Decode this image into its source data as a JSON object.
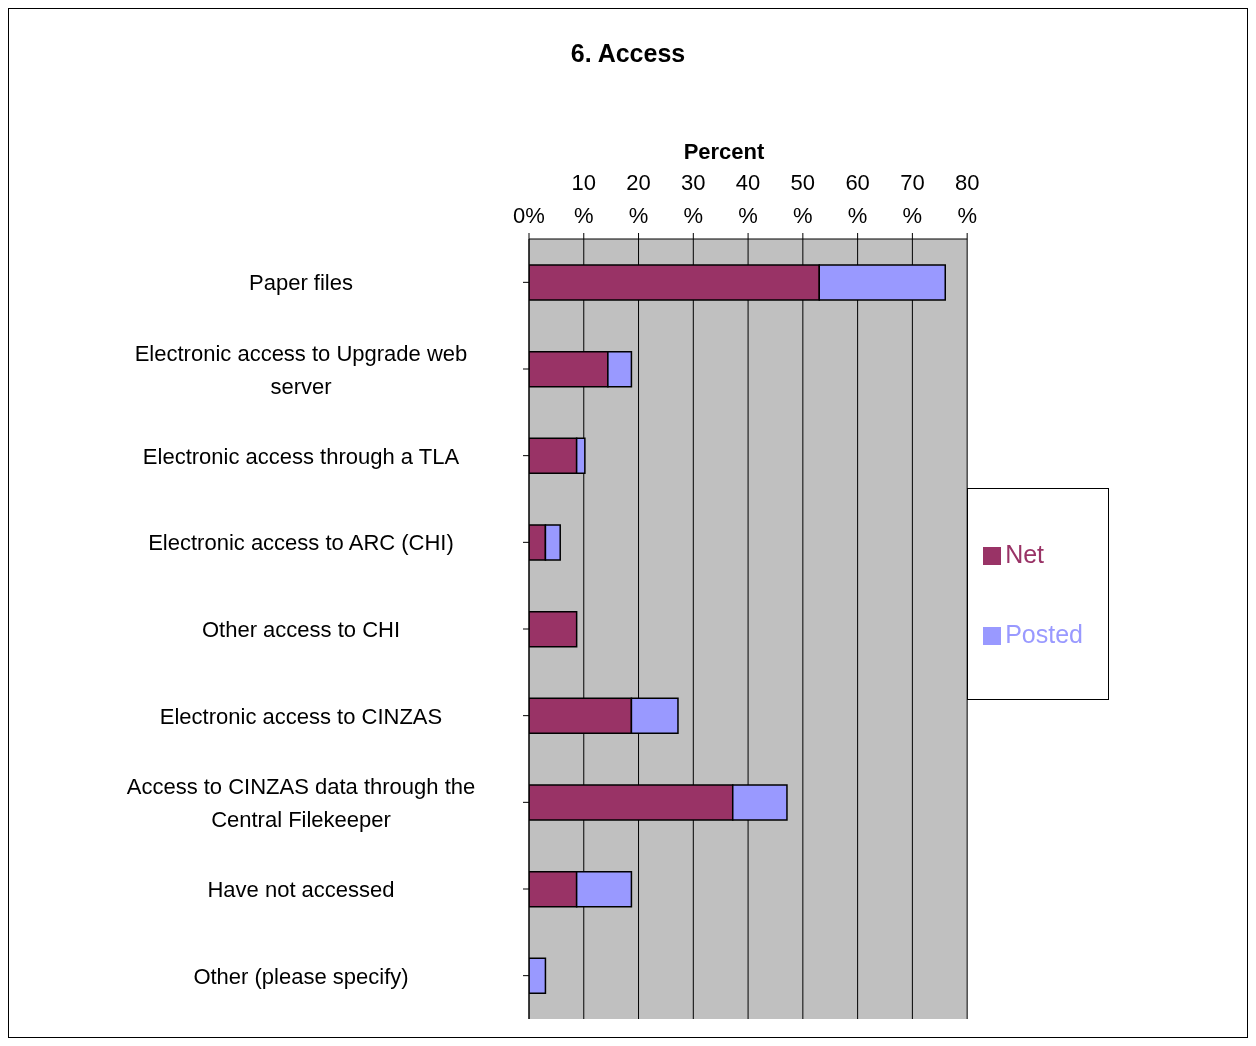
{
  "chart_data": {
    "type": "bar",
    "title": "6. Access",
    "xlabel": "Percent",
    "orientation": "horizontal",
    "stacked": true,
    "categories": [
      "Paper files",
      "Electronic access to Upgrade web server",
      "Electronic access through a TLA",
      "Electronic access to ARC  (CHI)",
      "Other access to CHI",
      "Electronic access to CINZAS",
      "Access to CINZAS data through the Central Filekeeper",
      "Have not accessed",
      "Other (please specify)"
    ],
    "series": [
      {
        "name": "Net",
        "color": "#993366",
        "values": [
          53,
          14.4,
          8.7,
          3,
          8.7,
          18.7,
          37.2,
          8.7,
          0
        ]
      },
      {
        "name": "Posted",
        "color": "#9999ff",
        "values": [
          23,
          4.3,
          1.5,
          2.7,
          0,
          8.5,
          9.9,
          10,
          3
        ]
      }
    ],
    "xlim": [
      0,
      80
    ],
    "xticks": [
      {
        "value": 0,
        "label": "0%"
      },
      {
        "value": 10,
        "label": "10 %"
      },
      {
        "value": 20,
        "label": "20 %"
      },
      {
        "value": 30,
        "label": "30 %"
      },
      {
        "value": 40,
        "label": "40 %"
      },
      {
        "value": 50,
        "label": "50 %"
      },
      {
        "value": 60,
        "label": "60 %"
      },
      {
        "value": 70,
        "label": "70 %"
      },
      {
        "value": 80,
        "label": "80 %"
      }
    ],
    "grid": "x",
    "legend": "right"
  }
}
